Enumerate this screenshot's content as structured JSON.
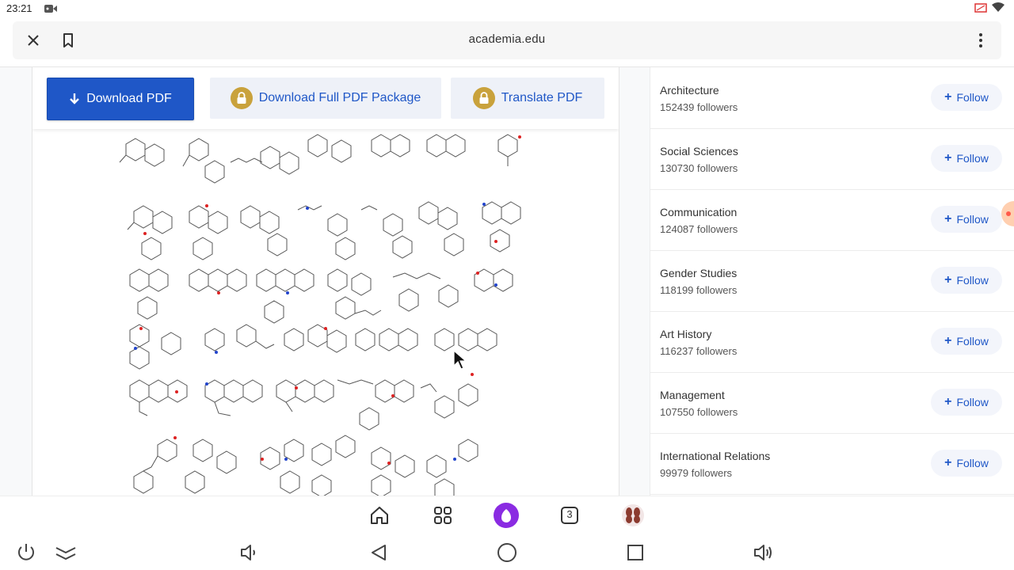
{
  "status_bar": {
    "time": "23:21",
    "icons": [
      "video-camera-icon",
      "screen-cast-icon",
      "wifi-icon"
    ]
  },
  "browser": {
    "url": "academia.edu",
    "icons": [
      "close-icon",
      "bookmark-icon",
      "more-vert-icon"
    ]
  },
  "actions": {
    "download_pdf": "Download PDF",
    "download_package": "Download Full PDF Package",
    "translate_pdf": "Translate PDF"
  },
  "figure": {
    "description_icon": "chemical-structures-figure"
  },
  "sidebar": {
    "follow_label": "Follow",
    "topics": [
      {
        "name": "Architecture",
        "followers": "152439 followers"
      },
      {
        "name": "Social Sciences",
        "followers": "130730 followers"
      },
      {
        "name": "Communication",
        "followers": "124087 followers"
      },
      {
        "name": "Gender Studies",
        "followers": "118199 followers"
      },
      {
        "name": "Art History",
        "followers": "116237 followers"
      },
      {
        "name": "Management",
        "followers": "107550 followers"
      },
      {
        "name": "International Relations",
        "followers": "99979 followers"
      }
    ]
  },
  "dock": {
    "tab_count": "3",
    "icons": [
      "home-icon",
      "apps-grid-icon",
      "assistant-icon",
      "tabs-icon",
      "profile-avatar-icon"
    ]
  },
  "navbar": {
    "icons": [
      "power-icon",
      "collapse-icon",
      "volume-down-icon",
      "back-icon",
      "home-circle-icon",
      "recents-icon",
      "volume-up-icon"
    ]
  },
  "colors": {
    "primary_blue": "#1f57c7",
    "lock_gold": "#c9a23c",
    "assistant_purple": "#8a2be2"
  }
}
